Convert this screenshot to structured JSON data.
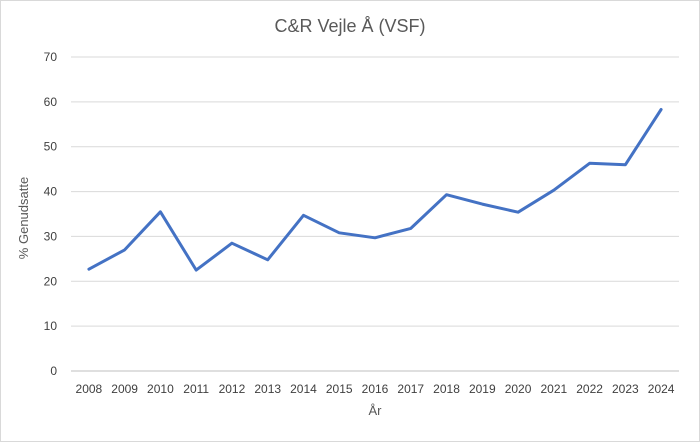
{
  "chart_data": {
    "type": "line",
    "title": "C&R Vejle Å (VSF)",
    "xlabel": "År",
    "ylabel": "% Genudsatte",
    "ylim": [
      0,
      70
    ],
    "yticks": [
      0,
      10,
      20,
      30,
      40,
      50,
      60,
      70
    ],
    "grid": true,
    "legend": "none",
    "categories": [
      "2008",
      "2009",
      "2010",
      "2011",
      "2012",
      "2013",
      "2014",
      "2015",
      "2016",
      "2017",
      "2018",
      "2019",
      "2020",
      "2021",
      "2022",
      "2023",
      "2024"
    ],
    "series": [
      {
        "color": "#4472c4",
        "values": [
          22.7,
          27.0,
          35.5,
          22.5,
          28.5,
          24.8,
          34.7,
          30.8,
          29.7,
          31.8,
          39.3,
          37.2,
          35.4,
          40.3,
          46.3,
          46.0,
          58.3
        ]
      }
    ]
  }
}
